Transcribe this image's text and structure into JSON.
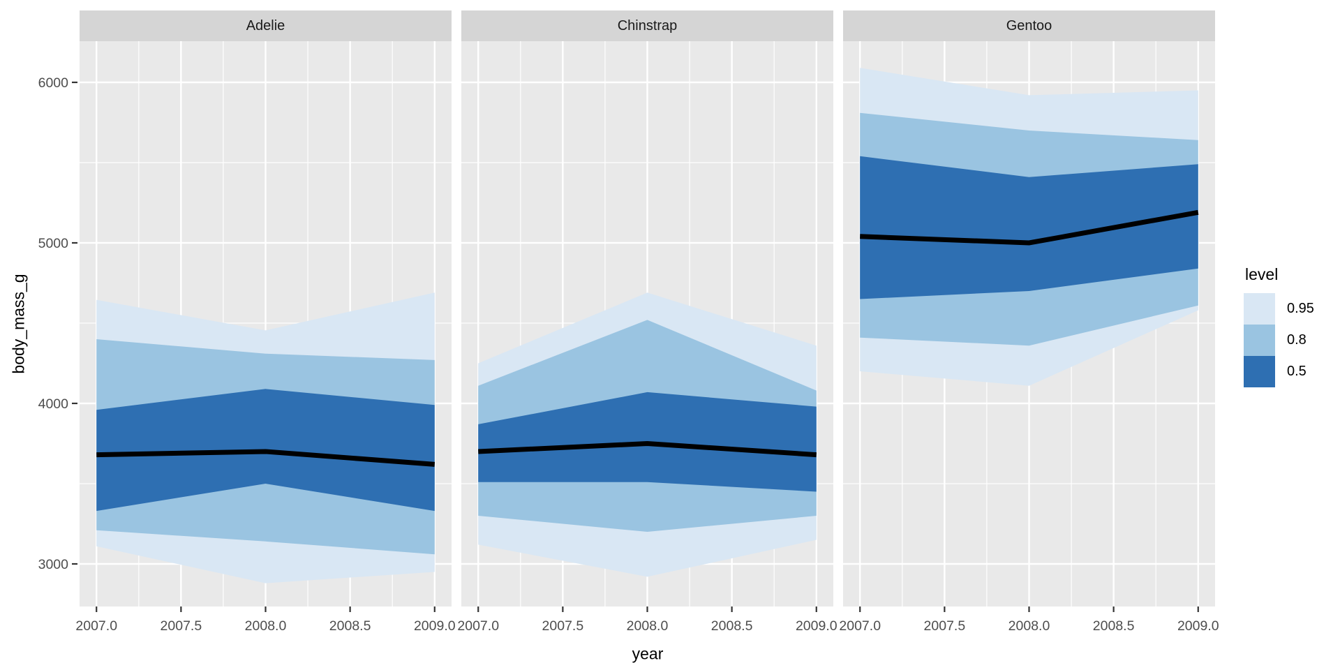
{
  "figure": {
    "legend": {
      "title": "level"
    }
  },
  "colors": {
    "panel_bg": "#E9E9E9",
    "strip_bg": "#D5D5D5",
    "grid": "#FFFFFF",
    "tick_mark": "#333333",
    "tick_label": "#4D4D4D",
    "median_line": "#000000"
  },
  "chart_data": {
    "type": "area",
    "xlabel": "year",
    "ylabel": "body_mass_g",
    "x_tick_labels": [
      "2007.0",
      "2007.5",
      "2008.0",
      "2008.5",
      "2009.0"
    ],
    "x_tick_values": [
      2007,
      2007.5,
      2008,
      2008.5,
      2009
    ],
    "x_minor_values": [
      2007.25,
      2007.75,
      2008.25,
      2008.75
    ],
    "y_tick_labels": [
      "3000",
      "4000",
      "5000",
      "6000"
    ],
    "y_tick_values": [
      3000,
      4000,
      5000,
      6000
    ],
    "y_minor_values": [
      3500,
      4500,
      5500
    ],
    "x_range": [
      2006.9,
      2009.1
    ],
    "grid": "on",
    "legend_position": "right",
    "levels": [
      {
        "label": "0.95",
        "color": "#D9E7F4"
      },
      {
        "label": "0.8",
        "color": "#9AC4E1"
      },
      {
        "label": "0.5",
        "color": "#2E6FB2"
      }
    ],
    "facets": [
      {
        "label": "Adelie",
        "years": [
          2007,
          2008,
          2009
        ],
        "median": [
          3680,
          3700,
          3620
        ],
        "bands": [
          {
            "level": "0.95",
            "lower": [
              3110,
              2880,
              2950
            ],
            "upper": [
              4645,
              4455,
              4690
            ]
          },
          {
            "level": "0.8",
            "lower": [
              3210,
              3140,
              3060
            ],
            "upper": [
              4400,
              4310,
              4270
            ]
          },
          {
            "level": "0.5",
            "lower": [
              3330,
              3500,
              3330
            ],
            "upper": [
              3960,
              4090,
              3990
            ]
          }
        ]
      },
      {
        "label": "Chinstrap",
        "years": [
          2007,
          2008,
          2009
        ],
        "median": [
          3700,
          3750,
          3680
        ],
        "bands": [
          {
            "level": "0.95",
            "lower": [
              3120,
              2920,
              3150
            ],
            "upper": [
              4250,
              4690,
              4360
            ]
          },
          {
            "level": "0.8",
            "lower": [
              3300,
              3200,
              3300
            ],
            "upper": [
              4110,
              4520,
              4080
            ]
          },
          {
            "level": "0.5",
            "lower": [
              3510,
              3510,
              3450
            ],
            "upper": [
              3870,
              4070,
              3980
            ]
          }
        ]
      },
      {
        "label": "Gentoo",
        "years": [
          2007,
          2008,
          2009
        ],
        "median": [
          5040,
          5000,
          5190
        ],
        "bands": [
          {
            "level": "0.95",
            "lower": [
              4200,
              4110,
              4580
            ],
            "upper": [
              6090,
              5920,
              5950
            ]
          },
          {
            "level": "0.8",
            "lower": [
              4410,
              4360,
              4610
            ],
            "upper": [
              5810,
              5700,
              5640
            ]
          },
          {
            "level": "0.5",
            "lower": [
              4650,
              4700,
              4840
            ],
            "upper": [
              5540,
              5410,
              5490
            ]
          }
        ]
      }
    ]
  }
}
